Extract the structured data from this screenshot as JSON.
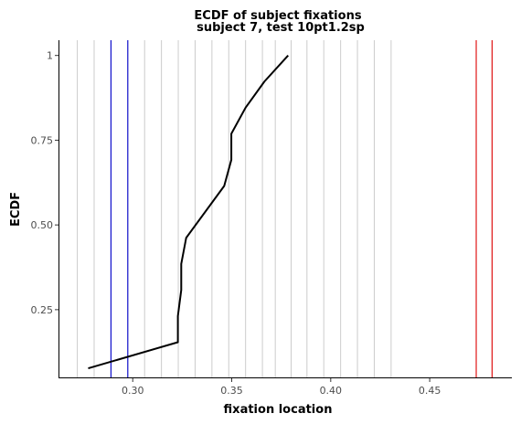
{
  "chart_data": {
    "type": "line",
    "title": "ECDF of subject fixations",
    "subtitle": "subject 7, test 10pt1.2sp",
    "xlabel": "fixation location",
    "ylabel": "ECDF",
    "xlim": [
      0.2625,
      0.4915
    ],
    "ylim": [
      0.0475,
      1.045
    ],
    "x_ticks": [
      0.3,
      0.35,
      0.4,
      0.45
    ],
    "x_tick_labels": [
      "0.30",
      "0.35",
      "0.40",
      "0.45"
    ],
    "y_ticks": [
      0.25,
      0.5,
      0.75,
      1.0
    ],
    "y_tick_labels": [
      "0.25",
      "0.50",
      "0.75",
      "1"
    ],
    "grid": false,
    "reference_lines": {
      "gray": [
        0.272,
        0.2805,
        0.289,
        0.2975,
        0.306,
        0.3145,
        0.323,
        0.3315,
        0.34,
        0.3485,
        0.357,
        0.3655,
        0.372,
        0.38,
        0.388,
        0.3965,
        0.405,
        0.4135,
        0.422,
        0.4305
      ],
      "blue": [
        0.289,
        0.2975
      ],
      "red": [
        0.4735,
        0.4815
      ],
      "colors": {
        "gray": "#cccccc",
        "blue": "#0000cc",
        "red": "#dd0000"
      }
    },
    "series": [
      {
        "color": "#000000",
        "points": [
          [
            0.2775,
            0.077
          ],
          [
            0.3228,
            0.154
          ],
          [
            0.3228,
            0.231
          ],
          [
            0.3245,
            0.308
          ],
          [
            0.3245,
            0.385
          ],
          [
            0.327,
            0.462
          ],
          [
            0.3462,
            0.615
          ],
          [
            0.3498,
            0.692
          ],
          [
            0.3498,
            0.769
          ],
          [
            0.357,
            0.846
          ],
          [
            0.3665,
            0.923
          ],
          [
            0.3785,
            1.0
          ]
        ]
      }
    ]
  }
}
